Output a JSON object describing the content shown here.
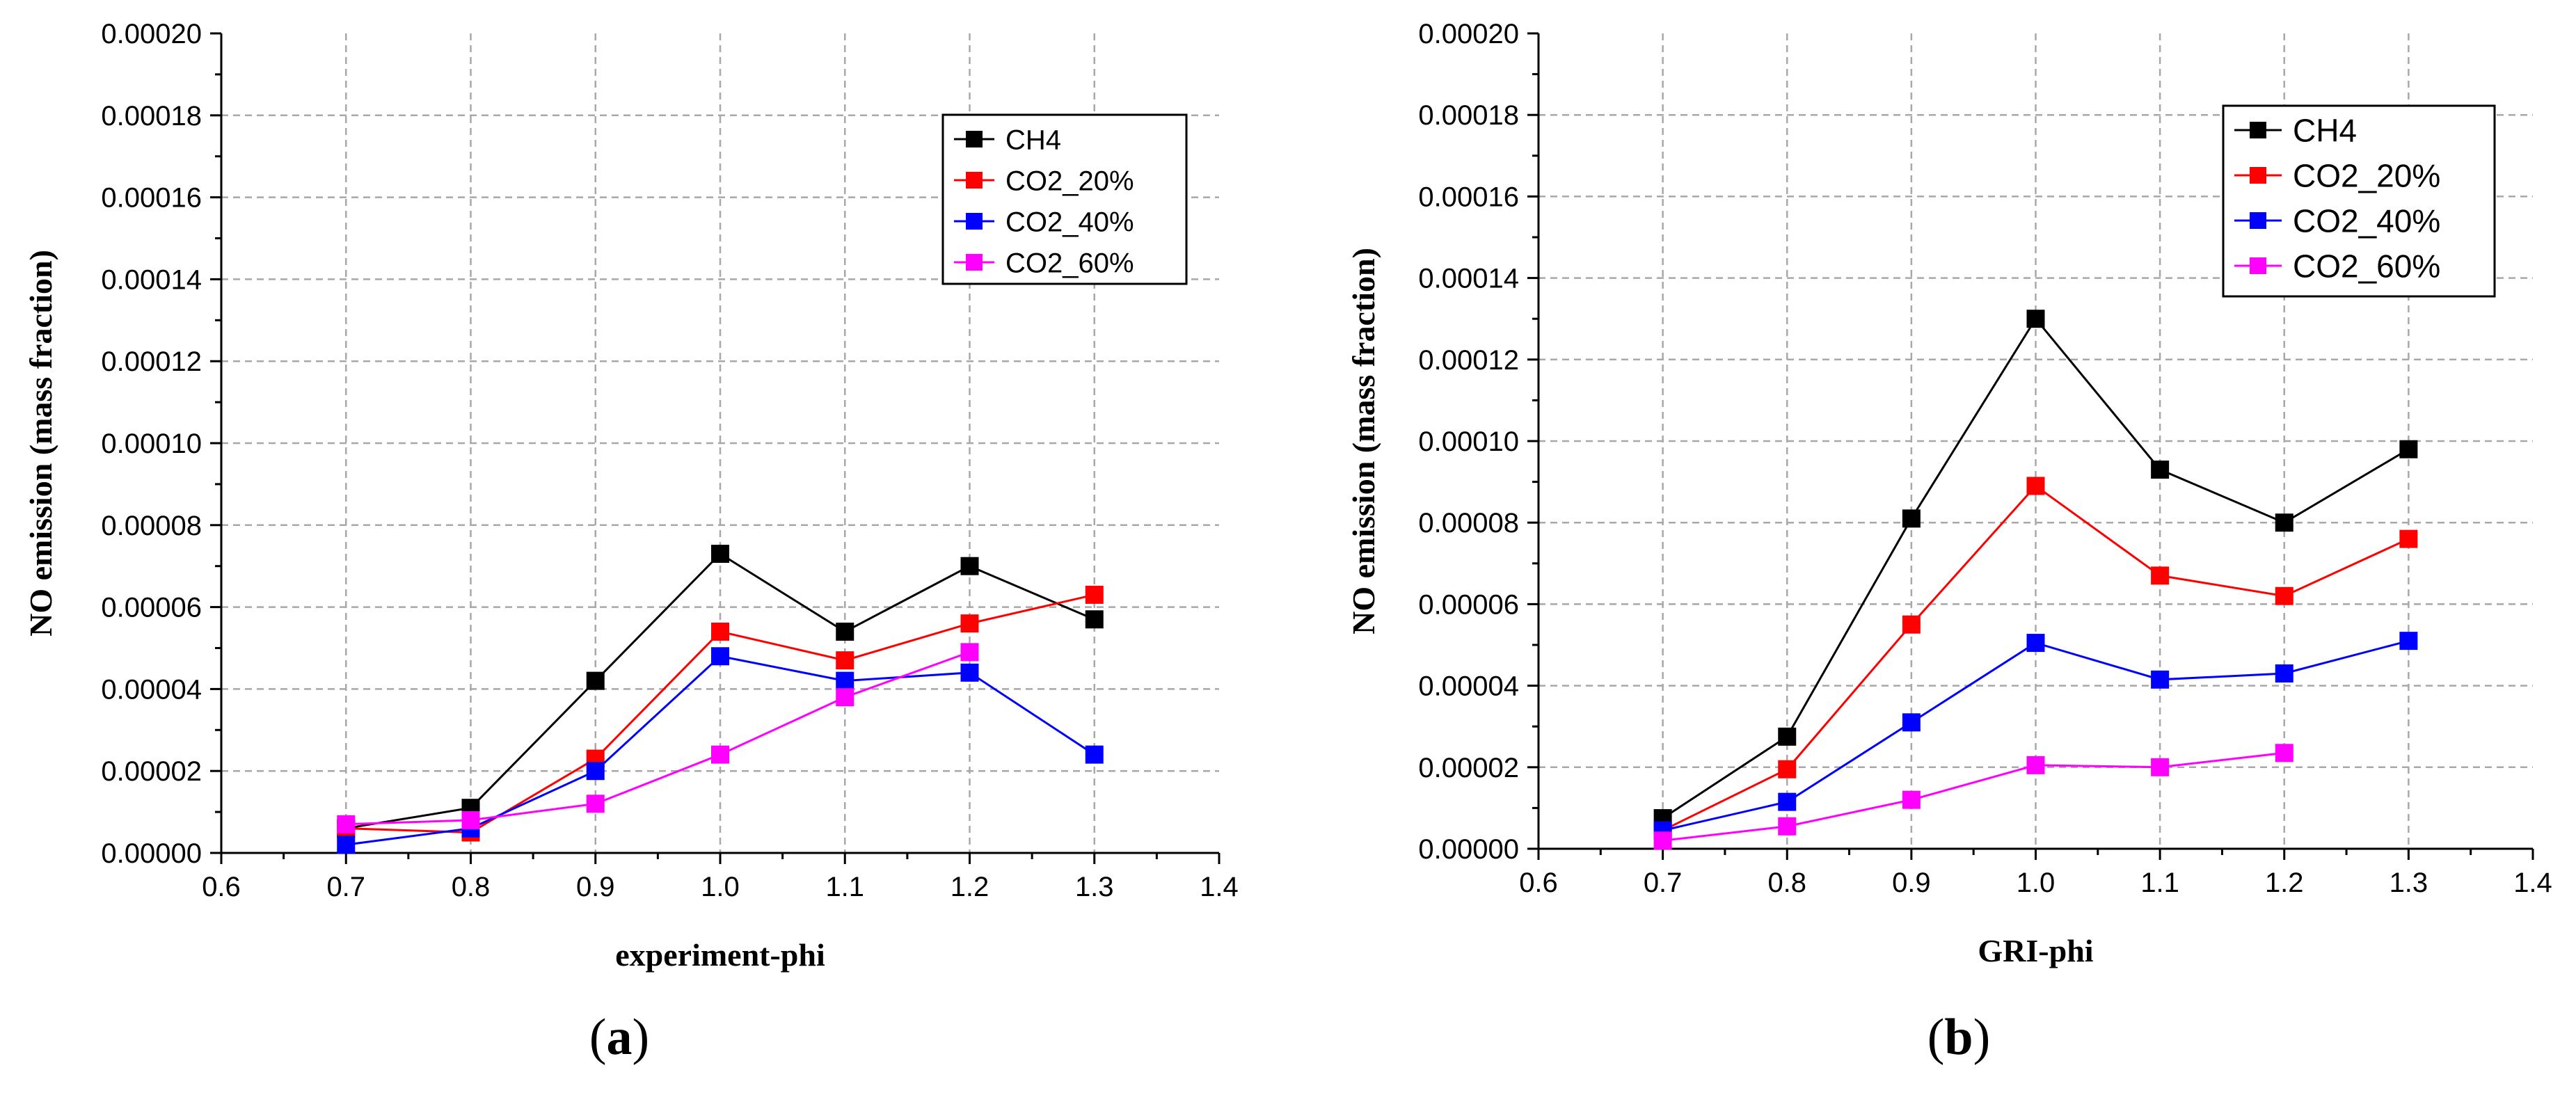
{
  "chart_data": [
    {
      "type": "line",
      "panel_label": "a",
      "xlabel": "experiment-phi",
      "ylabel": "NO emission (mass fraction)",
      "xlim": [
        0.6,
        1.4
      ],
      "ylim": [
        0,
        0.0002
      ],
      "x_ticks": [
        "0.6",
        "0.7",
        "0.8",
        "0.9",
        "1.0",
        "1.1",
        "1.2",
        "1.3",
        "1.4"
      ],
      "y_ticks": [
        "0.00000",
        "0.00002",
        "0.00004",
        "0.00006",
        "0.00008",
        "0.00010",
        "0.00012",
        "0.00014",
        "0.00016",
        "0.00018",
        "0.00020"
      ],
      "grid": true,
      "legend_position": "top-right",
      "series": [
        {
          "name": "CH4",
          "color": "#000000",
          "x": [
            0.7,
            0.8,
            0.9,
            1.0,
            1.1,
            1.2,
            1.3
          ],
          "values": [
            6e-06,
            1.1e-05,
            4.2e-05,
            7.3e-05,
            5.4e-05,
            7e-05,
            5.7e-05
          ]
        },
        {
          "name": "CO2_20%",
          "color": "#ff0000",
          "x": [
            0.7,
            0.8,
            0.9,
            1.0,
            1.1,
            1.2,
            1.3
          ],
          "values": [
            6e-06,
            5e-06,
            2.3e-05,
            5.4e-05,
            4.7e-05,
            5.6e-05,
            6.3e-05
          ]
        },
        {
          "name": "CO2_40%",
          "color": "#0000ff",
          "x": [
            0.7,
            0.8,
            0.9,
            1.0,
            1.1,
            1.2,
            1.3
          ],
          "values": [
            2e-06,
            6e-06,
            2e-05,
            4.8e-05,
            4.2e-05,
            4.4e-05,
            2.4e-05
          ]
        },
        {
          "name": "CO2_60%",
          "color": "#ff00ff",
          "x": [
            0.7,
            0.8,
            0.9,
            1.0,
            1.1,
            1.2
          ],
          "values": [
            7e-06,
            8e-06,
            1.2e-05,
            2.4e-05,
            3.8e-05,
            4.9e-05
          ]
        }
      ]
    },
    {
      "type": "line",
      "panel_label": "b",
      "xlabel": "GRI-phi",
      "ylabel": "NO emission (mass fraction)",
      "xlim": [
        0.6,
        1.4
      ],
      "ylim": [
        0,
        0.0002
      ],
      "x_ticks": [
        "0.6",
        "0.7",
        "0.8",
        "0.9",
        "1.0",
        "1.1",
        "1.2",
        "1.3",
        "1.4"
      ],
      "y_ticks": [
        "0.00000",
        "0.00002",
        "0.00004",
        "0.00006",
        "0.00008",
        "0.00010",
        "0.00012",
        "0.00014",
        "0.00016",
        "0.00018",
        "0.00020"
      ],
      "grid": true,
      "legend_position": "top-right",
      "series": [
        {
          "name": "CH4",
          "color": "#000000",
          "x": [
            0.7,
            0.8,
            0.9,
            1.0,
            1.1,
            1.2,
            1.3
          ],
          "values": [
            7.5e-06,
            2.75e-05,
            8.1e-05,
            0.00013,
            9.3e-05,
            8e-05,
            9.8e-05
          ]
        },
        {
          "name": "CO2_20%",
          "color": "#ff0000",
          "x": [
            0.7,
            0.8,
            0.9,
            1.0,
            1.1,
            1.2,
            1.3
          ],
          "values": [
            4.5e-06,
            1.95e-05,
            5.5e-05,
            8.9e-05,
            6.7e-05,
            6.2e-05,
            7.6e-05
          ]
        },
        {
          "name": "CO2_40%",
          "color": "#0000ff",
          "x": [
            0.7,
            0.8,
            0.9,
            1.0,
            1.1,
            1.2,
            1.3
          ],
          "values": [
            4.5e-06,
            1.15e-05,
            3.1e-05,
            5.05e-05,
            4.15e-05,
            4.3e-05,
            5.1e-05
          ]
        },
        {
          "name": "CO2_60%",
          "color": "#ff00ff",
          "x": [
            0.7,
            0.8,
            0.9,
            1.0,
            1.1,
            1.2
          ],
          "values": [
            2e-06,
            5.5e-06,
            1.2e-05,
            2.05e-05,
            2e-05,
            2.35e-05
          ]
        }
      ]
    }
  ]
}
